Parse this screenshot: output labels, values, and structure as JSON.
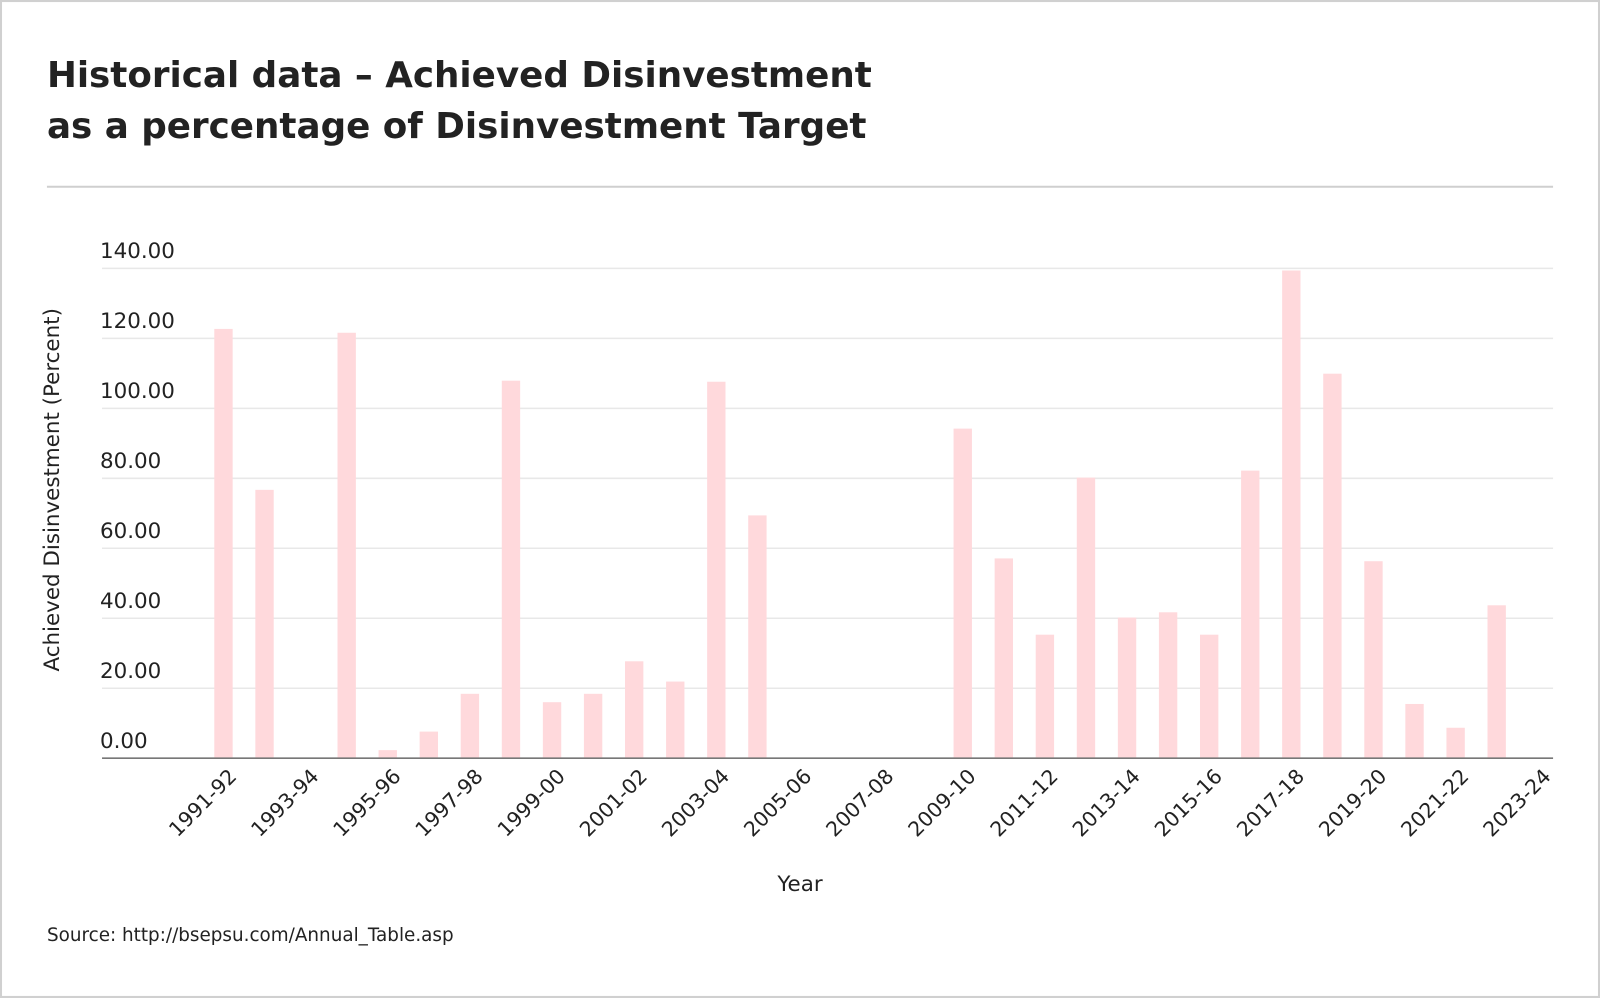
{
  "chart_data": {
    "type": "bar",
    "title": [
      "Historical data – Achieved Disinvestment",
      "as a percentage of Disinvestment Target"
    ],
    "x_label": "Year",
    "y_label": "Achieved Disinvestment (Percent)",
    "source": "Source: http://bsepsu.com/Annual_Table.asp",
    "categories": [
      "1991-92",
      null,
      "1993-94",
      null,
      "1995-96",
      null,
      "1997-98",
      null,
      "1999-00",
      null,
      "2001-02",
      null,
      "2003-04",
      null,
      "2005-06",
      null,
      "2007-08",
      null,
      "2009-10",
      null,
      "2011-12",
      null,
      "2013-14",
      null,
      "2015-16",
      null,
      "2017-18",
      null,
      "2019-20",
      null,
      "2021-22",
      null,
      "2023-24"
    ],
    "values": [
      122.7,
      76.7,
      0,
      121.6,
      2.3,
      7.6,
      18.4,
      107.9,
      16.0,
      18.4,
      27.7,
      21.9,
      107.6,
      69.4,
      0,
      0,
      0,
      0,
      94.2,
      57.1,
      35.3,
      80.2,
      40.2,
      41.7,
      35.3,
      82.2,
      139.4,
      109.9,
      56.3,
      15.5,
      8.7,
      43.7,
      0
    ],
    "color": "#ffd9dc",
    "ylim": [
      0,
      140
    ],
    "yticks": [
      {
        "value": 0,
        "label": "0.00"
      },
      {
        "value": 20,
        "label": "20.00"
      },
      {
        "value": 40,
        "label": "40.00"
      },
      {
        "value": 60,
        "label": "60.00"
      },
      {
        "value": 80,
        "label": "80.00"
      },
      {
        "value": 100,
        "label": "100.00"
      },
      {
        "value": 120,
        "label": "120.00"
      },
      {
        "value": 140,
        "label": "140.00"
      }
    ],
    "grid": true
  }
}
